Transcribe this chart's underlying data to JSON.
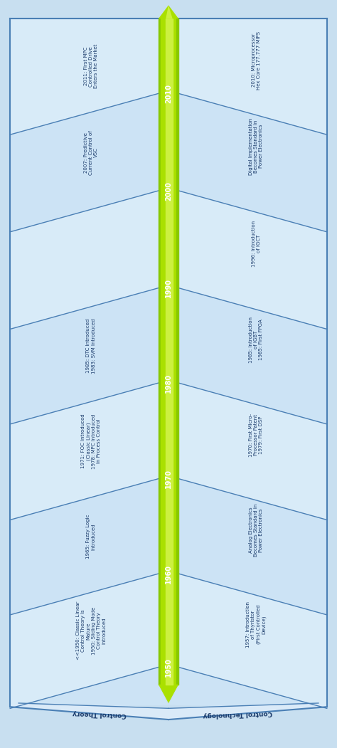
{
  "fig_width": 4.74,
  "fig_height": 10.51,
  "dpi": 100,
  "bg_color": "#c8dff0",
  "panel_color": "#daeaf8",
  "border_color": "#4a7fb5",
  "text_color": "#1a3a6a",
  "green_dark": "#88c800",
  "green_mid": "#aae000",
  "green_light": "#ccf040",
  "years": [
    "2010",
    "2000",
    "1990",
    "1980",
    "1970",
    "1960",
    "1950"
  ],
  "left_entries": [
    "2011: First MPC\nControlled Drive\nEnters the Market",
    "2007: Predictive\nCurrent Control of\nVSC",
    "",
    "1985: DTC Introduced\n1983: SVM Introduced",
    "1971: FOC Introduced\n(Classic Linear)\n1978: MPC Introduced\nin Process Control",
    "1965: Fuzzy Logic\nIntroduced",
    "<<1950: Classic Linear\nControl Theory Is\nMature\n1950: Sliding Mode\nControl Theory\nIntroduced"
  ],
  "right_entries": [
    "2010: Microprocessor\nHex Core 177.777 MIPS",
    "Digital Implementation\nBecomes Standard in\nPower Electronics",
    "1996: Introduction\nof IGCT",
    "1985: Introduction\nof IGBT\n1985: First FPGA",
    "1970: First Micro-\nProcessor Patent\n1979: First DSP",
    "Analog Electronics\nBecomes Standard in\nPower Electronics",
    "1957: Introduction\nof Thyristor\n(First Controlled\nDevice)"
  ],
  "left_label": "Control Theory",
  "right_label": "Control Technology"
}
